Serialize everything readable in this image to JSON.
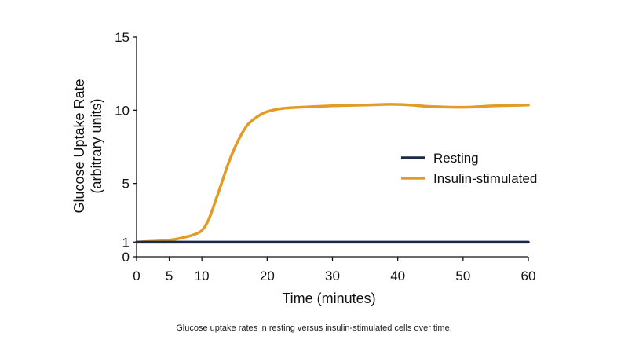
{
  "chart_data": {
    "type": "line",
    "title": "",
    "xlabel": "Time (minutes)",
    "ylabel_line1": "Glucose Uptake Rate",
    "ylabel_line2": "(arbitrary units)",
    "xlim": [
      0,
      60
    ],
    "ylim": [
      0,
      15
    ],
    "xticks": [
      0,
      5,
      10,
      20,
      30,
      40,
      50,
      60
    ],
    "yticks": [
      0,
      1,
      5,
      10,
      15
    ],
    "grid": false,
    "legend_position": "right-middle",
    "series": [
      {
        "name": "Resting",
        "color": "#1b2a4a",
        "x": [
          0,
          60
        ],
        "y": [
          1,
          1
        ]
      },
      {
        "name": "Insulin-stimulated",
        "color": "#e39b26",
        "x": [
          0,
          2,
          4,
          6,
          8,
          9,
          10,
          11,
          12,
          13,
          14,
          15,
          16,
          17,
          18,
          19,
          20,
          22,
          25,
          30,
          35,
          39,
          42,
          45,
          50,
          55,
          60
        ],
        "y": [
          1.0,
          1.05,
          1.1,
          1.2,
          1.4,
          1.55,
          1.8,
          2.5,
          3.7,
          5.0,
          6.3,
          7.4,
          8.3,
          9.0,
          9.4,
          9.7,
          9.9,
          10.1,
          10.2,
          10.3,
          10.35,
          10.4,
          10.35,
          10.25,
          10.2,
          10.3,
          10.35
        ]
      }
    ]
  },
  "caption": "Glucose uptake rates in resting versus insulin-stimulated cells over time."
}
